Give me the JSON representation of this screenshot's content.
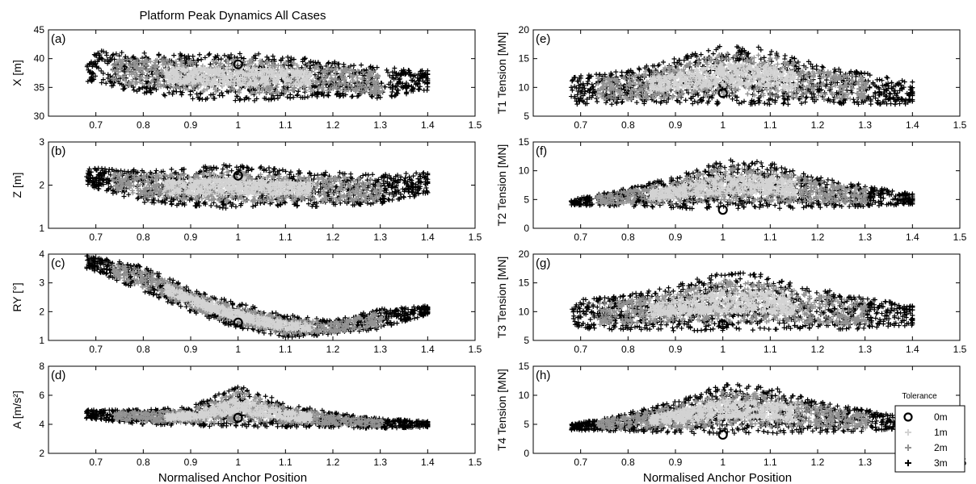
{
  "figure": {
    "title": "Platform Peak Dynamics All Cases",
    "xlabel_left": "Normalised Anchor Position",
    "xlabel_right": "Normalised Anchor Position"
  },
  "legend": {
    "title": "Tolerance",
    "items": [
      {
        "label": "0m",
        "marker": "circle",
        "color": "#000000"
      },
      {
        "label": "1m",
        "marker": "plus",
        "color": "#d3d3d3"
      },
      {
        "label": "2m",
        "marker": "plus",
        "color": "#939393"
      },
      {
        "label": "3m",
        "marker": "plus",
        "color": "#000000"
      }
    ]
  },
  "chart_data": [
    {
      "panel": "(a)",
      "type": "scatter",
      "ylabel": "X [m]",
      "xlim": [
        0.6,
        1.5
      ],
      "ylim": [
        30,
        45
      ],
      "xticks": [
        0.7,
        0.8,
        0.9,
        1,
        1.1,
        1.2,
        1.3,
        1.4,
        1.5
      ],
      "yticks": [
        30,
        35,
        40,
        45
      ],
      "nominal": {
        "x": 1.0,
        "y": 39
      },
      "envelope": {
        "x": [
          0.68,
          0.8,
          0.9,
          1.0,
          1.1,
          1.2,
          1.3,
          1.4
        ],
        "upper": [
          41.5,
          41,
          40.8,
          41.2,
          40.5,
          39.5,
          38.5,
          38
        ],
        "lower": [
          36,
          34,
          33,
          32.5,
          33,
          33.5,
          33,
          34.5
        ]
      }
    },
    {
      "panel": "(b)",
      "type": "scatter",
      "ylabel": "Z [m]",
      "xlim": [
        0.6,
        1.5
      ],
      "ylim": [
        1,
        3
      ],
      "xticks": [
        0.7,
        0.8,
        0.9,
        1,
        1.1,
        1.2,
        1.3,
        1.4,
        1.5
      ],
      "yticks": [
        1,
        2,
        3
      ],
      "nominal": {
        "x": 1.0,
        "y": 2.22
      },
      "envelope": {
        "x": [
          0.68,
          0.8,
          0.9,
          1.0,
          1.1,
          1.2,
          1.3,
          1.4
        ],
        "upper": [
          2.4,
          2.35,
          2.4,
          2.5,
          2.35,
          2.3,
          2.25,
          2.3
        ],
        "lower": [
          2.0,
          1.6,
          1.5,
          1.45,
          1.5,
          1.5,
          1.55,
          1.8
        ]
      }
    },
    {
      "panel": "(c)",
      "type": "scatter",
      "ylabel": "RY [°]",
      "xlim": [
        0.6,
        1.5
      ],
      "ylim": [
        1,
        4
      ],
      "xticks": [
        0.7,
        0.8,
        0.9,
        1,
        1.1,
        1.2,
        1.3,
        1.4,
        1.5
      ],
      "yticks": [
        1,
        2,
        3,
        4
      ],
      "nominal": {
        "x": 1.0,
        "y": 1.62
      },
      "envelope": {
        "x": [
          0.68,
          0.8,
          0.9,
          1.0,
          1.1,
          1.2,
          1.3,
          1.4
        ],
        "upper": [
          3.95,
          3.6,
          2.8,
          2.3,
          1.9,
          1.7,
          2.1,
          2.2
        ],
        "lower": [
          3.5,
          2.7,
          2.0,
          1.4,
          1.1,
          1.2,
          1.4,
          1.9
        ]
      }
    },
    {
      "panel": "(d)",
      "type": "scatter",
      "ylabel": "A [m/s²]",
      "xlim": [
        0.6,
        1.5
      ],
      "ylim": [
        2,
        8
      ],
      "xticks": [
        0.7,
        0.8,
        0.9,
        1,
        1.1,
        1.2,
        1.3,
        1.4,
        1.5
      ],
      "yticks": [
        2,
        4,
        6,
        8
      ],
      "nominal": {
        "x": 1.0,
        "y": 4.45
      },
      "envelope": {
        "x": [
          0.68,
          0.8,
          0.9,
          1.0,
          1.1,
          1.2,
          1.3,
          1.4
        ],
        "upper": [
          5.0,
          5.0,
          5.2,
          6.7,
          5.5,
          4.8,
          4.4,
          4.2
        ],
        "lower": [
          4.4,
          4.0,
          3.9,
          3.8,
          3.8,
          3.8,
          3.7,
          3.8
        ]
      }
    },
    {
      "panel": "(e)",
      "type": "scatter",
      "ylabel": "T1 Tension [MN]",
      "xlim": [
        0.6,
        1.5
      ],
      "ylim": [
        5,
        20
      ],
      "xticks": [
        0.7,
        0.8,
        0.9,
        1,
        1.1,
        1.2,
        1.3,
        1.4,
        1.5
      ],
      "yticks": [
        5,
        10,
        15,
        20
      ],
      "nominal": {
        "x": 1.0,
        "y": 9
      },
      "envelope": {
        "x": [
          0.68,
          0.8,
          0.9,
          1.0,
          1.1,
          1.2,
          1.3,
          1.4
        ],
        "upper": [
          12,
          13,
          15,
          17.5,
          17,
          14,
          12.5,
          11
        ],
        "lower": [
          7,
          7,
          7,
          7,
          7,
          7,
          7,
          7
        ]
      }
    },
    {
      "panel": "(f)",
      "type": "scatter",
      "ylabel": "T2 Tension [MN]",
      "xlim": [
        0.6,
        1.5
      ],
      "ylim": [
        0,
        15
      ],
      "xticks": [
        0.7,
        0.8,
        0.9,
        1,
        1.1,
        1.2,
        1.3,
        1.4,
        1.5
      ],
      "yticks": [
        0,
        5,
        10,
        15
      ],
      "nominal": {
        "x": 1.0,
        "y": 3.2
      },
      "envelope": {
        "x": [
          0.68,
          0.8,
          0.9,
          1.0,
          1.1,
          1.2,
          1.3,
          1.4
        ],
        "upper": [
          5,
          7,
          9,
          12,
          11.5,
          9,
          7.5,
          6
        ],
        "lower": [
          4,
          3.8,
          3.5,
          3.3,
          3.4,
          3.6,
          3.8,
          4.2
        ]
      }
    },
    {
      "panel": "(g)",
      "type": "scatter",
      "ylabel": "T3 Tension [MN]",
      "xlim": [
        0.6,
        1.5
      ],
      "ylim": [
        5,
        20
      ],
      "xticks": [
        0.7,
        0.8,
        0.9,
        1,
        1.1,
        1.2,
        1.3,
        1.4,
        1.5
      ],
      "yticks": [
        5,
        10,
        15,
        20
      ],
      "nominal": {
        "x": 1.0,
        "y": 7.8
      },
      "envelope": {
        "x": [
          0.68,
          0.8,
          0.9,
          1.0,
          1.1,
          1.2,
          1.3,
          1.4
        ],
        "upper": [
          12,
          13,
          14.5,
          17,
          16.5,
          14,
          12.5,
          11
        ],
        "lower": [
          7,
          6.8,
          6.7,
          6.7,
          6.7,
          6.8,
          7,
          7.5
        ]
      }
    },
    {
      "panel": "(h)",
      "type": "scatter",
      "ylabel": "T4 Tension [MN]",
      "xlim": [
        0.6,
        1.5
      ],
      "ylim": [
        0,
        15
      ],
      "xticks": [
        0.7,
        0.8,
        0.9,
        1,
        1.1,
        1.2,
        1.3,
        1.4,
        1.5
      ],
      "yticks": [
        0,
        5,
        10,
        15
      ],
      "nominal": {
        "x": 1.0,
        "y": 3.2
      },
      "envelope": {
        "x": [
          0.68,
          0.8,
          0.9,
          1.0,
          1.1,
          1.2,
          1.3,
          1.4
        ],
        "upper": [
          5,
          7,
          9,
          12,
          11.5,
          9,
          7.5,
          6
        ],
        "lower": [
          4,
          3.8,
          3.5,
          3.3,
          3.4,
          3.6,
          3.8,
          4.2
        ]
      }
    }
  ]
}
